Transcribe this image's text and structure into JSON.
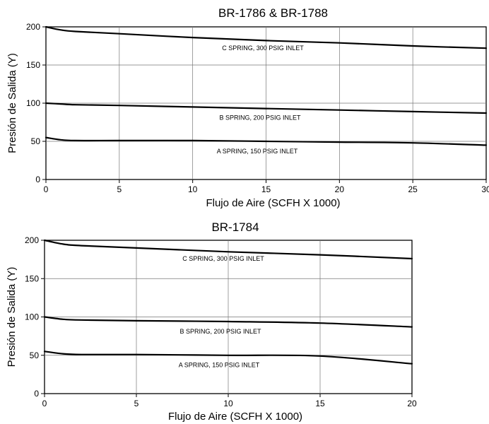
{
  "chart_data": [
    {
      "type": "line",
      "title": "BR-1786 & BR-1788",
      "xlabel": "Flujo de Aire (SCFH X 1000)",
      "ylabel": "Presión de Salida (Y)",
      "xlim": [
        0,
        30
      ],
      "ylim": [
        0,
        200
      ],
      "x_ticks": [
        "0",
        "5",
        "10",
        "15",
        "20",
        "25",
        "30"
      ],
      "y_ticks": [
        "0",
        "50",
        "100",
        "150",
        "200"
      ],
      "grid": true,
      "series": [
        {
          "name": "C SPRING, 300 PSIG INLET",
          "x": [
            0,
            1,
            2,
            5,
            10,
            15,
            20,
            25,
            30
          ],
          "y": [
            200,
            196,
            194,
            191,
            186,
            182,
            179,
            175,
            172
          ]
        },
        {
          "name": "B SPRING, 200 PSIG INLET",
          "x": [
            0,
            1,
            2,
            5,
            10,
            15,
            20,
            25,
            30
          ],
          "y": [
            100,
            99,
            98,
            97,
            95,
            93,
            91,
            89,
            87
          ]
        },
        {
          "name": "A SPRING, 150 PSIG INLET",
          "x": [
            0,
            1,
            2,
            5,
            10,
            15,
            20,
            25,
            30
          ],
          "y": [
            55,
            52,
            51,
            51,
            51,
            50,
            49,
            48,
            45
          ]
        }
      ]
    },
    {
      "type": "line",
      "title": "BR-1784",
      "xlabel": "Flujo de Aire (SCFH X 1000)",
      "ylabel": "Presión de Salida (Y)",
      "xlim": [
        0,
        20
      ],
      "ylim": [
        0,
        200
      ],
      "x_ticks": [
        "0",
        "5",
        "10",
        "15",
        "20"
      ],
      "y_ticks": [
        "0",
        "50",
        "100",
        "150",
        "200"
      ],
      "grid": true,
      "series": [
        {
          "name": "C SPRING, 300 PSIG INLET",
          "x": [
            0,
            1,
            2,
            5,
            10,
            15,
            20
          ],
          "y": [
            200,
            195,
            193,
            190,
            185,
            181,
            176
          ]
        },
        {
          "name": "B SPRING, 200 PSIG INLET",
          "x": [
            0,
            1,
            2,
            5,
            10,
            15,
            20
          ],
          "y": [
            100,
            97,
            96,
            95,
            94,
            92,
            87
          ]
        },
        {
          "name": "A SPRING, 150 PSIG INLET",
          "x": [
            0,
            1,
            2,
            5,
            10,
            15,
            20
          ],
          "y": [
            55,
            52,
            51,
            51,
            50,
            49,
            39
          ]
        }
      ]
    }
  ]
}
